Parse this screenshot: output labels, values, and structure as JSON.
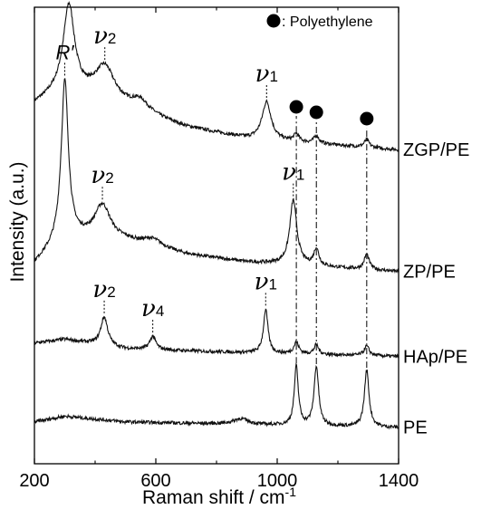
{
  "chart_data": {
    "type": "line",
    "title": "",
    "xlabel": "Raman shift / cm",
    "xlabel_superscript": "-1",
    "ylabel": "Intensity (a.u.)",
    "xlim": [
      200,
      1400
    ],
    "x_ticks": [
      200,
      600,
      1000,
      1400
    ],
    "x_tick_labels": [
      "200",
      "600",
      "1000",
      "1400"
    ],
    "y_ticks": "none",
    "grid": false,
    "legend": {
      "placement": "top-right",
      "marker": "filled-circle",
      "text": ": Polyethylene"
    },
    "polyethylene_bands": [
      1063,
      1129,
      1295
    ],
    "series": [
      {
        "name": "ZGP/PE",
        "baseline": 8.25,
        "background": [
          [
            200,
            1.2
          ],
          [
            300,
            1.6
          ],
          [
            500,
            1.1
          ],
          [
            700,
            0.6
          ],
          [
            900,
            0.3
          ],
          [
            1400,
            0.0
          ]
        ],
        "peaks": [
          [
            314,
            2.2,
            22
          ],
          [
            432,
            0.9,
            40
          ],
          [
            548,
            0.3,
            35
          ],
          [
            965,
            1.0,
            18
          ],
          [
            1063,
            0.2,
            10
          ],
          [
            1129,
            0.2,
            10
          ],
          [
            1295,
            0.2,
            10
          ]
        ],
        "peak_labels": [
          {
            "symbol": "R′",
            "x": 314
          },
          {
            "symbol": "ν",
            "sub": "2",
            "x": 432
          },
          {
            "symbol": "ν",
            "sub": "1",
            "x": 965
          }
        ]
      },
      {
        "name": "ZP/PE",
        "baseline": 5.05,
        "background": [
          [
            200,
            0.2
          ],
          [
            300,
            0.9
          ],
          [
            500,
            0.8
          ],
          [
            700,
            0.45
          ],
          [
            900,
            0.25
          ],
          [
            1400,
            0.0
          ]
        ],
        "peaks": [
          [
            300,
            4.1,
            14
          ],
          [
            424,
            0.9,
            32
          ],
          [
            590,
            0.2,
            40
          ],
          [
            1053,
            1.7,
            14
          ],
          [
            1129,
            0.45,
            10
          ],
          [
            1295,
            0.4,
            10
          ]
        ],
        "peak_labels": [
          {
            "symbol": "R′",
            "x": 300
          },
          {
            "symbol": "ν",
            "sub": "2",
            "x": 424
          },
          {
            "symbol": "ν",
            "sub": "1",
            "x": 1053
          }
        ]
      },
      {
        "name": "HAp/PE",
        "baseline": 2.82,
        "background": [
          [
            200,
            0.35
          ],
          [
            300,
            0.45
          ],
          [
            500,
            0.2
          ],
          [
            900,
            0.1
          ],
          [
            1400,
            0.0
          ]
        ],
        "peaks": [
          [
            430,
            0.75,
            14
          ],
          [
            590,
            0.35,
            12
          ],
          [
            962,
            1.15,
            9
          ],
          [
            1063,
            0.3,
            10
          ],
          [
            1129,
            0.25,
            9
          ],
          [
            1295,
            0.25,
            10
          ]
        ],
        "peak_labels": [
          {
            "symbol": "ν",
            "sub": "2",
            "x": 430
          },
          {
            "symbol": "ν",
            "sub": "4",
            "x": 590
          },
          {
            "symbol": "ν",
            "sub": "1",
            "x": 962
          }
        ]
      },
      {
        "name": "PE",
        "baseline": 0.95,
        "background": [
          [
            200,
            0.15
          ],
          [
            300,
            0.3
          ],
          [
            500,
            0.15
          ],
          [
            900,
            0.08
          ],
          [
            1400,
            0.0
          ]
        ],
        "peaks": [
          [
            880,
            0.15,
            30
          ],
          [
            1063,
            1.55,
            8
          ],
          [
            1129,
            1.55,
            9
          ],
          [
            1295,
            1.5,
            9
          ]
        ],
        "peak_labels": []
      }
    ]
  }
}
